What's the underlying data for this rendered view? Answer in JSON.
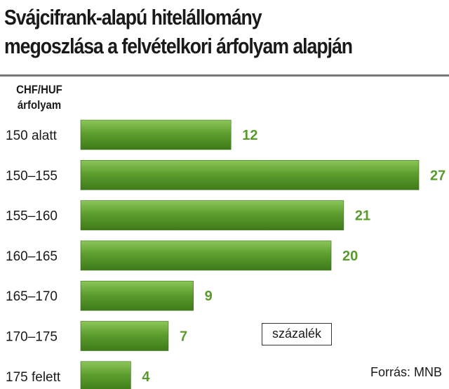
{
  "title_lines": [
    "Svájcifrank-alapú hitelállomány",
    "megoszlása a felvételkori árfolyam alapján"
  ],
  "chart_data": {
    "type": "bar",
    "orientation": "horizontal",
    "category_axis_label": [
      "CHF/HUF",
      "árfolyam"
    ],
    "categories": [
      "150 alatt",
      "150–155",
      "155–160",
      "160–165",
      "165–170",
      "170–175",
      "175 felett"
    ],
    "values": [
      12,
      27,
      21,
      20,
      9,
      7,
      4
    ],
    "unit": "százalék",
    "bar_color": "#5a9a2a",
    "label_color": "#5a9a2a",
    "grid": false
  },
  "source": "Forrás: MNB"
}
